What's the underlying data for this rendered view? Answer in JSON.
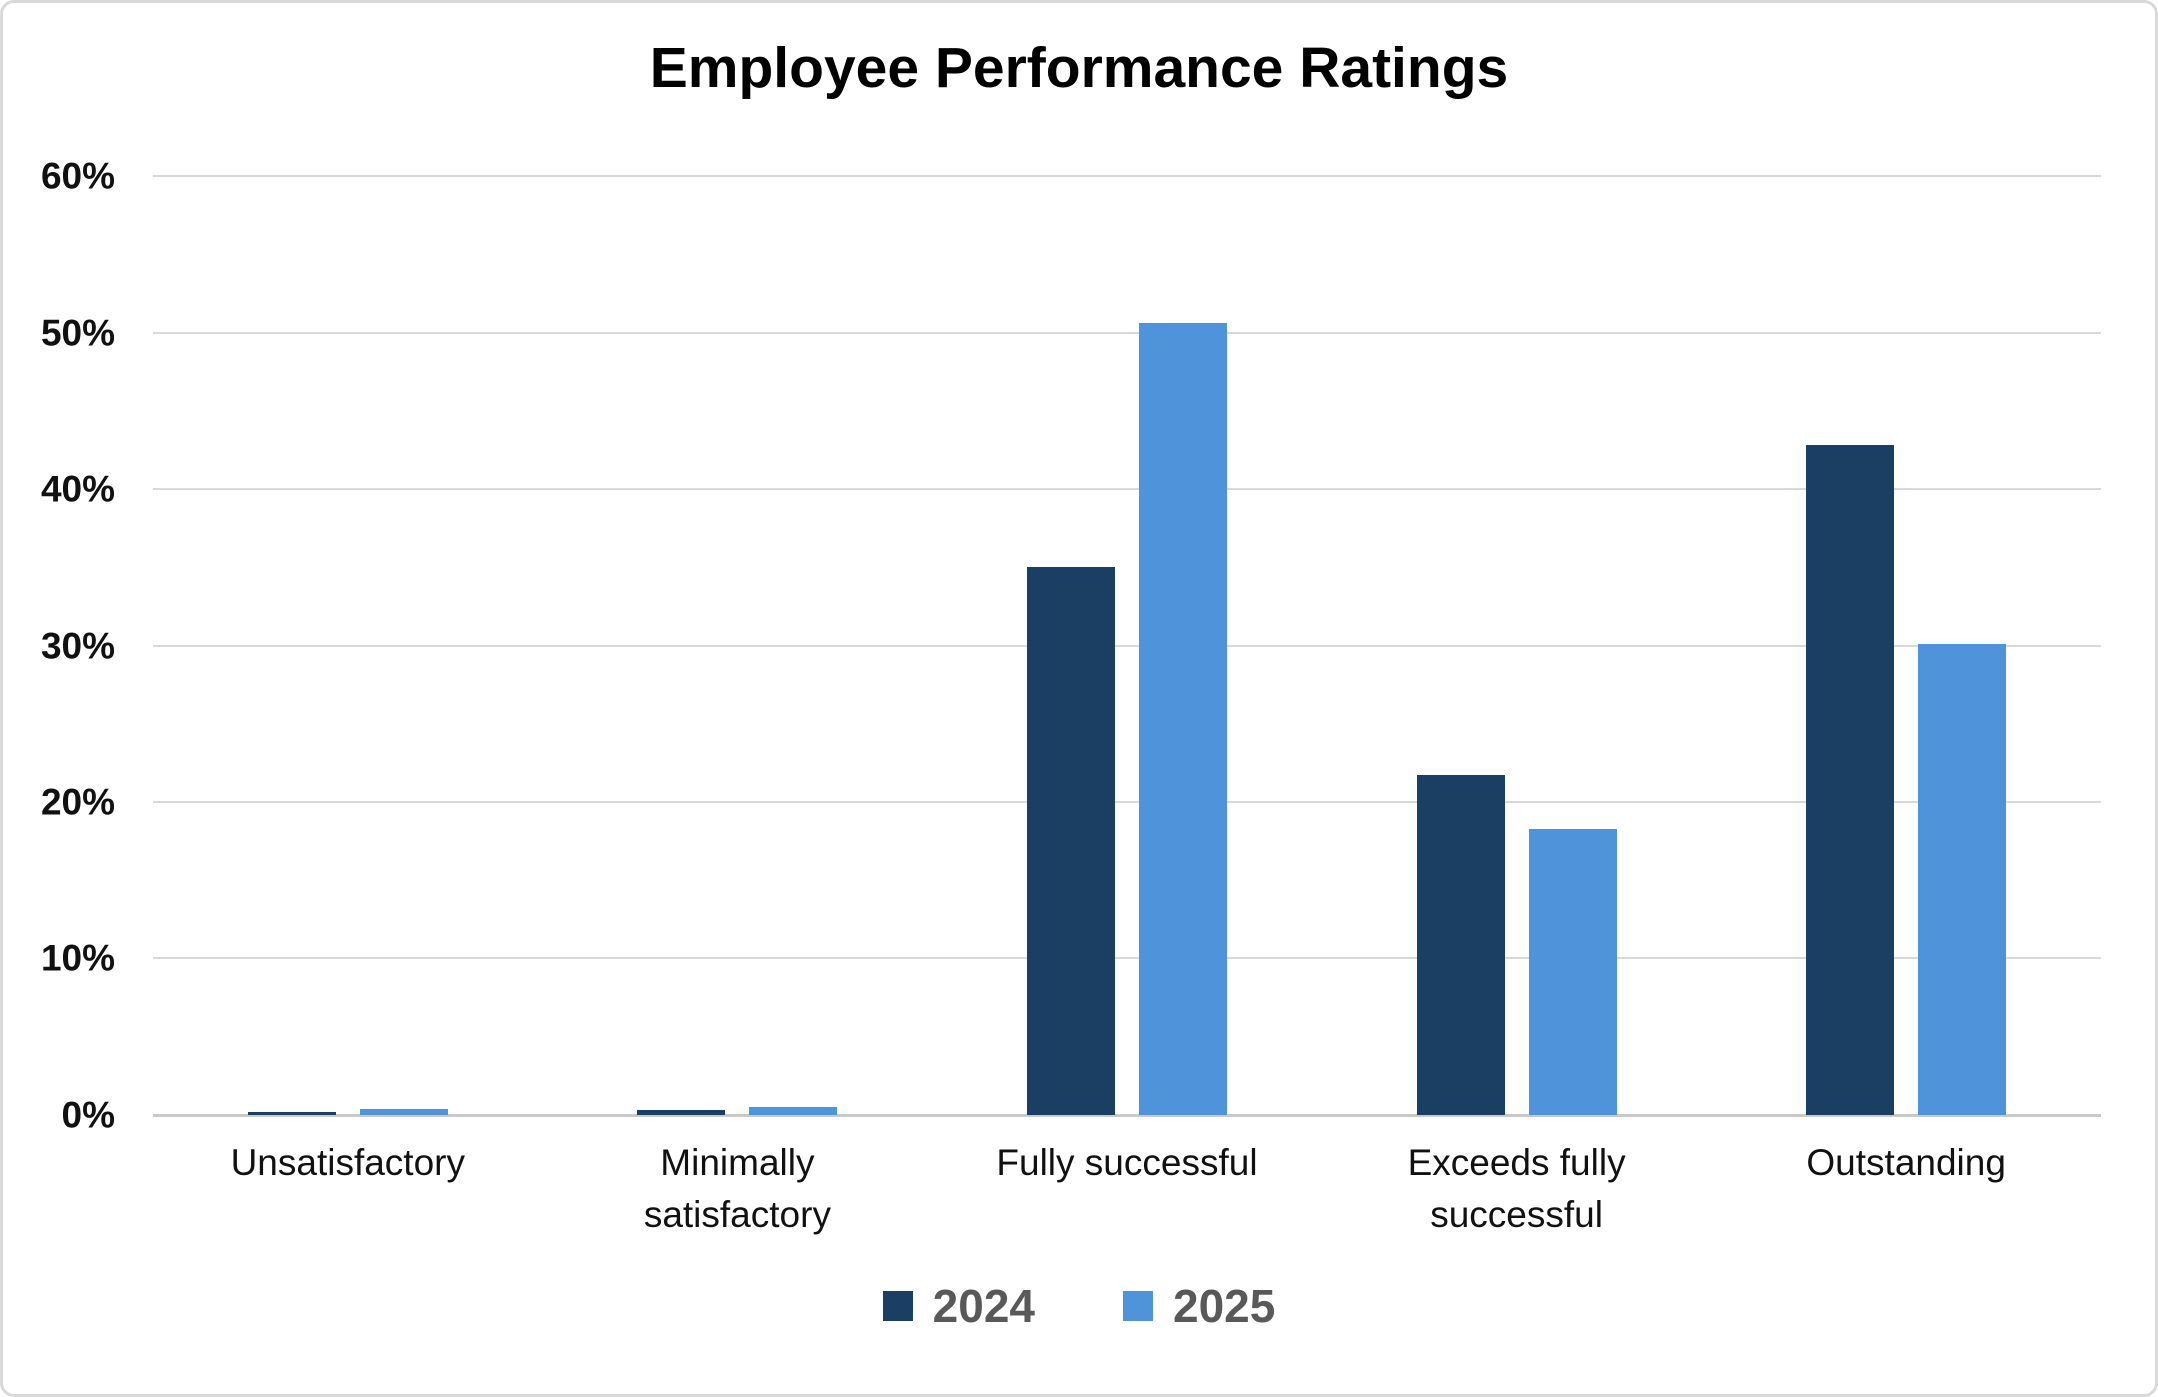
{
  "chart_data": {
    "type": "bar",
    "title": "Employee Performance Ratings",
    "categories": [
      "Unsatisfactory",
      "Minimally satisfactory",
      "Fully successful",
      "Exceeds fully successful",
      "Outstanding"
    ],
    "series": [
      {
        "name": "2024",
        "color": "#1B3E63",
        "values": [
          0.2,
          0.3,
          35.0,
          21.7,
          42.8
        ]
      },
      {
        "name": "2025",
        "color": "#4F93DB",
        "values": [
          0.4,
          0.5,
          50.6,
          18.3,
          30.1
        ]
      }
    ],
    "xlabel": "",
    "ylabel": "",
    "ylim": [
      0,
      60
    ],
    "yticks": [
      "60%",
      "50%",
      "40%",
      "30%",
      "20%",
      "10%",
      "0%"
    ],
    "grid": true,
    "legend_position": "bottom"
  },
  "colors": {
    "background": "#FFFFFF",
    "frame_border": "#D9D9D9",
    "gridline": "#D9D9D9",
    "axis_line": "#C9C9C9",
    "title_text": "#000000",
    "tick_text": "#111111",
    "legend_text": "#595959",
    "series_2024": "#1B3E63",
    "series_2025": "#4F93DB"
  }
}
